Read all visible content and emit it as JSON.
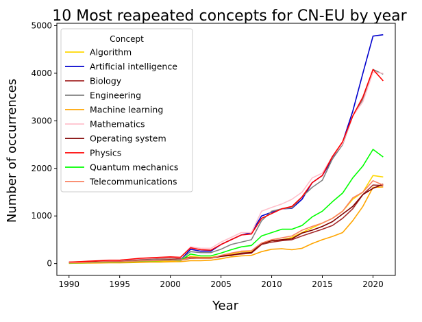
{
  "chart_data": {
    "type": "line",
    "title": "10 Most reapeated concepts for CN-EU by year",
    "xlabel": "Year",
    "ylabel": "Number of occurrences",
    "xlim": [
      1988.8,
      2022.2
    ],
    "ylim": [
      -250,
      5050
    ],
    "xticks": [
      1990,
      1995,
      2000,
      2005,
      2010,
      2015,
      2020
    ],
    "yticks": [
      0,
      1000,
      2000,
      3000,
      4000,
      5000
    ],
    "grid": false,
    "legend": {
      "title": "Concept",
      "placement": "top-left"
    },
    "x": [
      1990,
      1991,
      1992,
      1993,
      1994,
      1995,
      1996,
      1997,
      1998,
      1999,
      2000,
      2001,
      2002,
      2003,
      2004,
      2005,
      2006,
      2007,
      2008,
      2009,
      2010,
      2011,
      2012,
      2013,
      2014,
      2015,
      2016,
      2017,
      2018,
      2019,
      2020,
      2021
    ],
    "series": [
      {
        "name": "Algorithm",
        "color": "#ffd700",
        "values": [
          5,
          10,
          15,
          20,
          25,
          20,
          30,
          40,
          45,
          50,
          55,
          60,
          150,
          130,
          130,
          160,
          200,
          250,
          250,
          400,
          480,
          500,
          550,
          650,
          750,
          850,
          950,
          1100,
          1350,
          1500,
          1850,
          1820
        ]
      },
      {
        "name": "Artificial intelligence",
        "color": "#0000cd",
        "values": [
          20,
          25,
          30,
          35,
          40,
          45,
          50,
          55,
          60,
          65,
          70,
          75,
          300,
          260,
          260,
          400,
          500,
          600,
          650,
          1000,
          1080,
          1150,
          1160,
          1350,
          1700,
          1850,
          2200,
          2550,
          3200,
          4000,
          4780,
          4810
        ]
      },
      {
        "name": "Biology",
        "color": "#a52a2a",
        "values": [
          30,
          35,
          40,
          50,
          60,
          70,
          80,
          90,
          100,
          110,
          120,
          100,
          130,
          120,
          120,
          160,
          180,
          200,
          220,
          400,
          450,
          480,
          500,
          580,
          650,
          720,
          800,
          950,
          1150,
          1450,
          1650,
          1640
        ]
      },
      {
        "name": "Engineering",
        "color": "#808080",
        "values": [
          25,
          30,
          35,
          40,
          50,
          50,
          60,
          70,
          80,
          85,
          90,
          80,
          250,
          230,
          230,
          300,
          400,
          450,
          500,
          900,
          1100,
          1150,
          1170,
          1400,
          1600,
          1750,
          2200,
          2500,
          3100,
          3450,
          4080,
          3980
        ]
      },
      {
        "name": "Machine learning",
        "color": "#ffa500",
        "values": [
          5,
          8,
          10,
          12,
          15,
          15,
          20,
          25,
          30,
          30,
          35,
          40,
          60,
          60,
          70,
          100,
          140,
          160,
          170,
          250,
          300,
          310,
          290,
          320,
          420,
          500,
          570,
          650,
          900,
          1200,
          1600,
          1610
        ]
      },
      {
        "name": "Mathematics",
        "color": "#ffc0cb",
        "values": [
          30,
          35,
          45,
          55,
          60,
          65,
          80,
          100,
          110,
          120,
          130,
          120,
          350,
          320,
          320,
          450,
          550,
          650,
          650,
          1100,
          1180,
          1250,
          1350,
          1500,
          1800,
          1900,
          2250,
          2520,
          3100,
          3400,
          4020,
          4000
        ]
      },
      {
        "name": "Operating system",
        "color": "#800000",
        "values": [
          20,
          25,
          30,
          35,
          40,
          40,
          50,
          60,
          60,
          70,
          80,
          70,
          110,
          110,
          110,
          150,
          170,
          220,
          230,
          420,
          480,
          500,
          520,
          640,
          700,
          780,
          880,
          1040,
          1200,
          1450,
          1580,
          1670
        ]
      },
      {
        "name": "Physics",
        "color": "#ff0000",
        "values": [
          30,
          40,
          50,
          60,
          70,
          70,
          90,
          110,
          120,
          130,
          140,
          130,
          330,
          290,
          280,
          400,
          500,
          600,
          620,
          950,
          1050,
          1150,
          1200,
          1400,
          1700,
          1850,
          2250,
          2560,
          3100,
          3500,
          4080,
          3840
        ]
      },
      {
        "name": "Quantum mechanics",
        "color": "#00ff00",
        "values": [
          10,
          15,
          20,
          25,
          30,
          30,
          40,
          50,
          55,
          60,
          70,
          60,
          200,
          160,
          160,
          220,
          290,
          350,
          380,
          580,
          650,
          720,
          720,
          800,
          980,
          1100,
          1300,
          1480,
          1800,
          2050,
          2400,
          2240
        ]
      },
      {
        "name": "Telecommunications",
        "color": "#fa8060",
        "values": [
          15,
          20,
          25,
          30,
          35,
          35,
          45,
          55,
          60,
          65,
          70,
          70,
          120,
          110,
          110,
          170,
          220,
          260,
          270,
          430,
          500,
          540,
          580,
          700,
          780,
          850,
          950,
          1100,
          1380,
          1500,
          1740,
          1650
        ]
      }
    ]
  }
}
